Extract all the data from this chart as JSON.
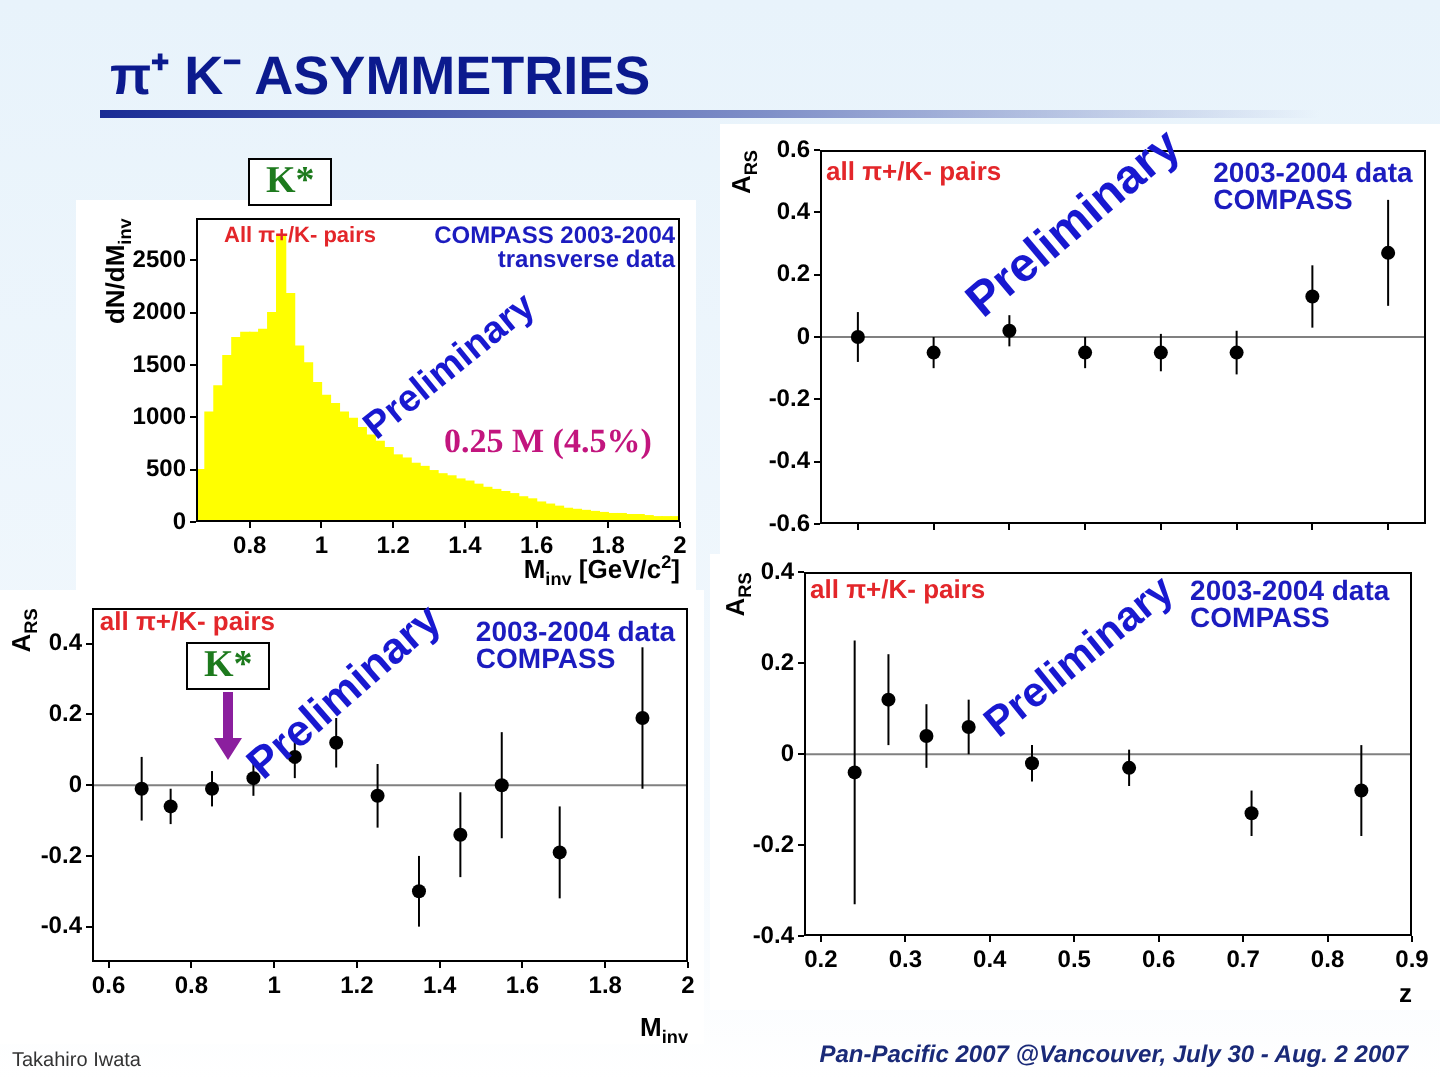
{
  "chart_data": [
    {
      "type": "other",
      "title": "π⁺ K⁻ ASYMMETRIES",
      "annotations": [
        "Takahiro Iwata",
        "Pan-Pacific 2007 @Vancouver, July 30 - Aug. 2 2007"
      ]
    },
    {
      "type": "histogram",
      "xlabel": "M$_{inv}$ [GeV/c$^{2}$]",
      "ylabel": "dN/dM$_{inv}$",
      "bins": [
        0.65,
        0.675,
        0.7,
        0.725,
        0.75,
        0.775,
        0.8,
        0.825,
        0.85,
        0.875,
        0.9,
        0.925,
        0.95,
        0.975,
        1,
        1.025,
        1.05,
        1.075,
        1.1,
        1.125,
        1.15,
        1.175,
        1.2,
        1.225,
        1.25,
        1.275,
        1.3,
        1.325,
        1.35,
        1.375,
        1.4,
        1.425,
        1.45,
        1.475,
        1.5,
        1.525,
        1.55,
        1.575,
        1.6,
        1.625,
        1.65,
        1.675,
        1.7,
        1.725,
        1.75,
        1.775,
        1.8,
        1.825,
        1.85,
        1.875,
        1.9,
        1.925,
        1.95,
        1.975,
        2
      ],
      "values": [
        500,
        1050,
        1300,
        1590,
        1760,
        1810,
        1810,
        1840,
        2000,
        2740,
        2180,
        1680,
        1520,
        1330,
        1210,
        1130,
        1050,
        990,
        900,
        830,
        770,
        710,
        640,
        610,
        560,
        530,
        490,
        460,
        440,
        410,
        390,
        360,
        330,
        310,
        290,
        270,
        240,
        220,
        190,
        170,
        150,
        130,
        120,
        110,
        100,
        90,
        80,
        80,
        70,
        70,
        60,
        50,
        50,
        50
      ],
      "color": "#ffff00",
      "xlim": [
        0.65,
        2
      ],
      "ylim": [
        0,
        2900
      ],
      "xticks": [
        0.8,
        1,
        1.2,
        1.4,
        1.6,
        1.8,
        2
      ],
      "yticks": [
        0,
        500,
        1000,
        1500,
        2000,
        2500
      ],
      "annotations": [
        "All π+/K- pairs",
        "COMPASS 2003-2004\ntransverse data",
        "Preliminary",
        "0.25 M (4.5%)",
        "K*"
      ]
    },
    {
      "type": "scatter",
      "ylabel": "A$_{RS}$",
      "categories": [
        null,
        null,
        null,
        null,
        null,
        null,
        null,
        null
      ],
      "values": [
        0,
        -0.05,
        0.02,
        -0.05,
        -0.05,
        -0.05,
        0.13,
        0.27
      ],
      "errors": [
        0.08,
        0.05,
        0.05,
        0.05,
        0.06,
        0.07,
        0.1,
        0.17
      ],
      "color": "#000000",
      "marker": "circle",
      "ylim": [
        -0.6,
        0.6
      ],
      "yticks": [
        -0.6,
        -0.4,
        -0.2,
        0,
        0.2,
        0.4,
        0.6
      ],
      "tick_labels": "y",
      "ref_lines": [
        {
          "axis": "y",
          "value": 0,
          "color": "#808080"
        }
      ],
      "annotations": [
        "all π+/K- pairs",
        "2003-2004 data\nCOMPASS",
        "Preliminary"
      ]
    },
    {
      "type": "scatter",
      "xlabel": "M$_{inv}$",
      "ylabel": "A$_{RS}$",
      "x": [
        0.68,
        0.75,
        0.85,
        0.95,
        1.05,
        1.15,
        1.25,
        1.35,
        1.45,
        1.55,
        1.69,
        1.89
      ],
      "values": [
        -0.01,
        -0.06,
        -0.01,
        0.02,
        0.08,
        0.12,
        -0.03,
        -0.3,
        -0.14,
        0,
        -0.19,
        0.19
      ],
      "errors": [
        0.09,
        0.05,
        0.05,
        0.05,
        0.06,
        0.07,
        0.09,
        0.1,
        0.12,
        0.15,
        0.13,
        0.2
      ],
      "color": "#000000",
      "marker": "circle",
      "xlim": [
        0.56,
        2
      ],
      "ylim": [
        -0.5,
        0.5
      ],
      "xticks": [
        0.6,
        0.8,
        1,
        1.2,
        1.4,
        1.6,
        1.8,
        2
      ],
      "yticks": [
        -0.4,
        -0.2,
        0,
        0.2,
        0.4
      ],
      "ref_lines": [
        {
          "axis": "y",
          "value": 0,
          "color": "#808080"
        }
      ],
      "annotations": [
        "all π+/K- pairs",
        "2003-2004 data\nCOMPASS",
        "Preliminary",
        "K*"
      ]
    },
    {
      "type": "scatter",
      "xlabel": "z",
      "ylabel": "A$_{RS}$",
      "x": [
        0.24,
        0.28,
        0.325,
        0.375,
        0.45,
        0.565,
        0.71,
        0.84
      ],
      "values": [
        -0.04,
        0.12,
        0.04,
        0.06,
        -0.02,
        -0.03,
        -0.13,
        -0.08
      ],
      "errors": [
        0.29,
        0.1,
        0.07,
        0.06,
        0.04,
        0.04,
        0.05,
        0.1
      ],
      "color": "#000000",
      "marker": "circle",
      "xlim": [
        0.18,
        0.9
      ],
      "ylim": [
        -0.4,
        0.4
      ],
      "xticks": [
        0.2,
        0.3,
        0.4,
        0.5,
        0.6,
        0.7,
        0.8,
        0.9
      ],
      "yticks": [
        -0.4,
        -0.2,
        0,
        0.2,
        0.4
      ],
      "ref_lines": [
        {
          "axis": "y",
          "value": 0,
          "color": "#808080"
        }
      ],
      "annotations": [
        "all π+/K- pairs",
        "2003-2004 data\nCOMPASS",
        "Preliminary"
      ]
    }
  ]
}
